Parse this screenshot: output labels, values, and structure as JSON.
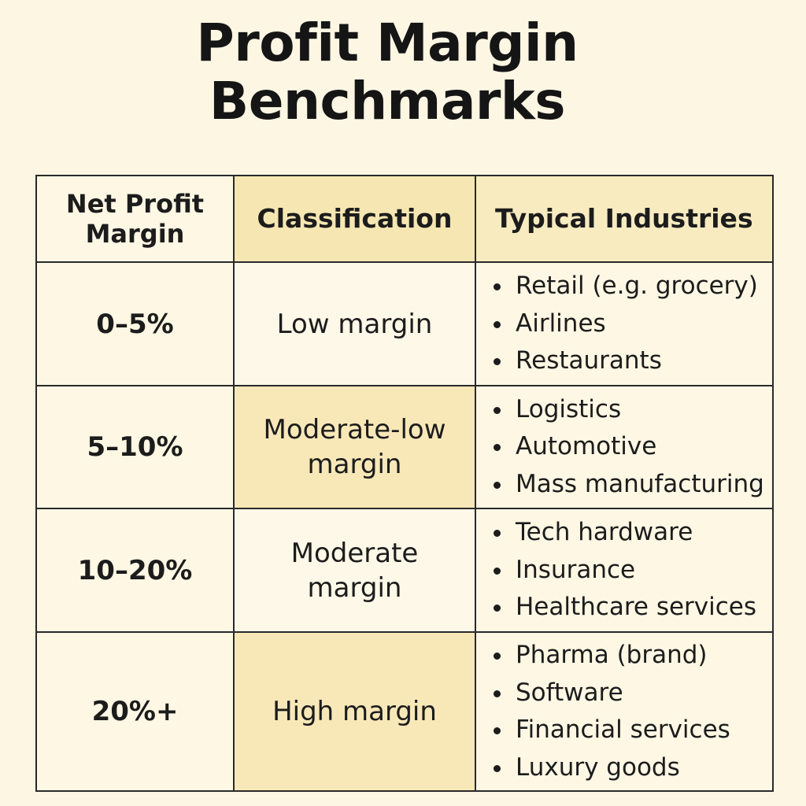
{
  "title": {
    "line1": "Profit Margin",
    "line2": "Benchmarks"
  },
  "table": {
    "headers": {
      "margin": "Net Profit Margin",
      "classification": "Classification",
      "industries": "Typical Industries"
    },
    "rows": [
      {
        "margin": "0–5%",
        "classification": "Low margin",
        "industries": [
          "Retail (e.g. grocery)",
          "Airlines",
          "Restaurants"
        ]
      },
      {
        "margin": "5–10%",
        "classification": "Moderate-low margin",
        "industries": [
          "Logistics",
          "Automotive",
          "Mass manufacturing"
        ]
      },
      {
        "margin": "10–20%",
        "classification": "Moderate margin",
        "industries": [
          "Tech hardware",
          "Insurance",
          "Healthcare services"
        ]
      },
      {
        "margin": "20%+",
        "classification": "High margin",
        "industries": [
          "Pharma (brand)",
          "Software",
          "Financial services",
          "Luxury goods"
        ]
      }
    ]
  },
  "colors": {
    "background": "#fcf6e3",
    "header_shade": "#f6e6b2",
    "row_shade": "#f8e8b8",
    "border": "#2a2a2a",
    "text": "#1c1c1c"
  }
}
